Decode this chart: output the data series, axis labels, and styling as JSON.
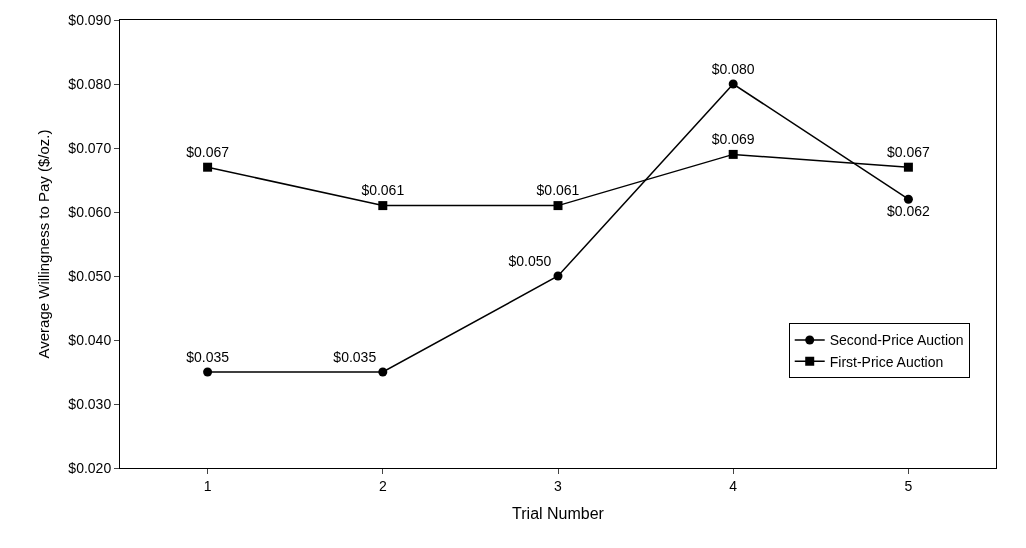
{
  "chart_data": {
    "type": "line",
    "xlabel": "Trial Number",
    "ylabel": "Average Willingness to Pay ($/oz.)",
    "categories": [
      "1",
      "2",
      "3",
      "4",
      "5"
    ],
    "series": [
      {
        "name": "Second-Price Auction",
        "color": "#000000",
        "marker": "circle",
        "values": [
          0.035,
          0.035,
          0.05,
          0.08,
          0.062
        ],
        "value_labels": [
          "$0.035",
          "$0.035",
          "$0.050",
          "$0.080",
          "$0.062"
        ]
      },
      {
        "name": "First-Price Auction",
        "color": "#000000",
        "marker": "square",
        "values": [
          0.067,
          0.061,
          0.061,
          0.069,
          0.067
        ],
        "value_labels": [
          "$0.067",
          "$0.061",
          "$0.061",
          "$0.069",
          "$0.067"
        ]
      }
    ],
    "ylim": [
      0.02,
      0.09
    ],
    "yticks": [
      {
        "value": 0.02,
        "label": "$0.020"
      },
      {
        "value": 0.03,
        "label": "$0.030"
      },
      {
        "value": 0.04,
        "label": "$0.040"
      },
      {
        "value": 0.05,
        "label": "$0.050"
      },
      {
        "value": 0.06,
        "label": "$0.060"
      },
      {
        "value": 0.07,
        "label": "$0.070"
      },
      {
        "value": 0.08,
        "label": "$0.080"
      },
      {
        "value": 0.09,
        "label": "$0.090"
      }
    ],
    "legend": "bottom right",
    "line_style": "solid"
  }
}
